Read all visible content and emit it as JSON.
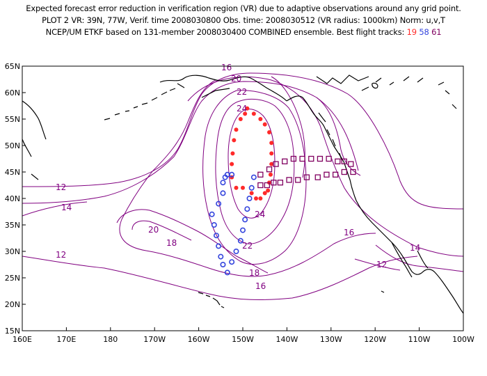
{
  "header": {
    "line1": "Expected forecast error reduction in verification region (VR) due to adaptive observations around any grid point.",
    "line2": "PLOT 2 VR: 39N, 77W, Verif. time 2008030800 Obs. time: 2008030512 (VR radius: 1000km) Norm: u,v,T",
    "line3_prefix": "NCEP/UM ETKF based on 131-member 2008030400 COMBINED ensemble.  Best flight tracks: ",
    "track_ids": [
      "19",
      "58",
      "61"
    ]
  },
  "axes": {
    "lat_labels": [
      "65N",
      "60N",
      "55N",
      "50N",
      "45N",
      "40N",
      "35N",
      "30N",
      "25N",
      "20N",
      "15N"
    ],
    "lon_labels": [
      "160E",
      "170E",
      "180",
      "170W",
      "160W",
      "150W",
      "140W",
      "130W",
      "120W",
      "110W",
      "100W"
    ]
  },
  "contour_labels": [
    "12",
    "14",
    "12",
    "16",
    "18",
    "20",
    "22",
    "24",
    "20",
    "18",
    "16",
    "22",
    "24",
    "16",
    "14",
    "12"
  ],
  "colors": {
    "contour": "#800080",
    "coast": "#000000",
    "track_19": "#ff2a2a",
    "track_58": "#3344dd",
    "track_61": "#800060"
  },
  "tracks": {
    "track_19": {
      "lon": [
        -149,
        -147.5,
        -146,
        -145,
        -144,
        -143.5,
        -143.5,
        -143.5,
        -143.7,
        -144,
        -144.3,
        -145,
        -146,
        -147,
        -148,
        -150,
        -151.5,
        -152.5,
        -152.5,
        -152.3,
        -152,
        -151.5,
        -150.5,
        -149.5
      ],
      "lat": [
        57,
        56,
        55,
        54,
        52.5,
        50.5,
        48.5,
        46.5,
        44.5,
        43,
        41.5,
        41,
        40,
        40,
        41,
        42,
        42,
        44,
        46.5,
        48.5,
        51,
        53,
        55,
        56
      ]
    },
    "track_58": {
      "lon": [
        -147.5,
        -148,
        -148.5,
        -149,
        -149.5,
        -150,
        -150.5,
        -151.5,
        -152.5,
        -153.5,
        -154.5,
        -155,
        -155.5,
        -156,
        -156.5,
        -157,
        -155.5,
        -154.5,
        -154.5,
        -154,
        -153.5,
        -152.5
      ],
      "lat": [
        44,
        42,
        40,
        38,
        36,
        34,
        32,
        30,
        28,
        26,
        27.5,
        29,
        31,
        33,
        35,
        37,
        39,
        41,
        43,
        44,
        44.5,
        44.5
      ]
    },
    "track_61": {
      "lon": [
        -146,
        -144.5,
        -143,
        -141.5,
        -139.5,
        -137.5,
        -135.5,
        -133,
        -131,
        -129,
        -127,
        -125,
        -125.5,
        -127,
        -128.5,
        -130.5,
        -132.5,
        -134.5,
        -136.5,
        -138.5,
        -140.5,
        -142.5,
        -144,
        -146
      ],
      "lat": [
        42.5,
        42.5,
        43,
        43,
        43.5,
        43.5,
        44,
        44,
        44.5,
        44.5,
        45,
        45,
        46.5,
        47,
        47,
        47.5,
        47.5,
        47.5,
        47.5,
        47.5,
        47,
        46.5,
        45.5,
        44.5
      ]
    }
  }
}
